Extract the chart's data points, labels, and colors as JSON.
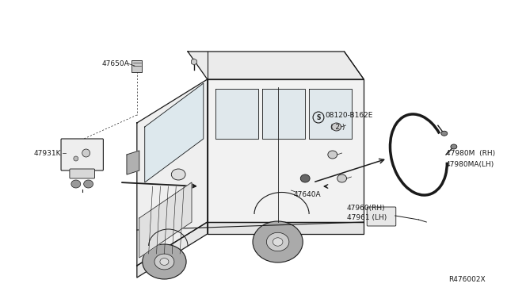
{
  "bg_color": "#ffffff",
  "line_color": "#1a1a1a",
  "ref_number": "R476002X",
  "label_47650A": "47650A",
  "label_47931K": "47931K",
  "label_47640A": "47640A",
  "label_08120": "08120-B162E",
  "label_08120b": "( 2 )",
  "label_47980M": "47980M  (RH)",
  "label_47980MA": "47980MA(LH)",
  "label_47960": "47960(RH)",
  "label_47961": "47961 (LH)",
  "font_size": 6.5
}
